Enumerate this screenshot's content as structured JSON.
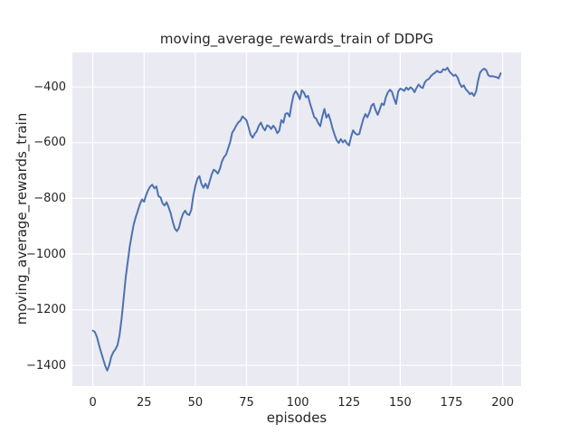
{
  "figure": {
    "title": "moving_average_rewards_train of DDPG",
    "x_axis_label": "episodes",
    "y_axis_label": "moving_average_rewards_train"
  },
  "colors": {
    "figure_background": "#ffffff",
    "axes_background": "#eaeaf2",
    "grid": "#ffffff",
    "line": "#4c72b0",
    "text": "#262626"
  },
  "chart_data": {
    "type": "line",
    "title": "moving_average_rewards_train of DDPG",
    "xlabel": "episodes",
    "ylabel": "moving_average_rewards_train",
    "xlim": [
      -10,
      209
    ],
    "ylim": [
      -1474,
      -276
    ],
    "xticks": [
      0,
      25,
      50,
      75,
      100,
      125,
      150,
      175,
      200
    ],
    "yticks": [
      -400,
      -600,
      -800,
      -1000,
      -1200,
      -1400
    ],
    "grid": true,
    "legend": false,
    "series": [
      {
        "name": "moving average rewards (train)",
        "color": "#4c72b0",
        "x_start": 0,
        "x_step": 1,
        "y": [
          -1275,
          -1280,
          -1298,
          -1326,
          -1352,
          -1377,
          -1400,
          -1418,
          -1398,
          -1368,
          -1352,
          -1342,
          -1328,
          -1292,
          -1232,
          -1162,
          -1085,
          -1028,
          -973,
          -930,
          -892,
          -866,
          -843,
          -820,
          -804,
          -812,
          -788,
          -770,
          -757,
          -751,
          -764,
          -757,
          -792,
          -796,
          -818,
          -826,
          -814,
          -832,
          -854,
          -884,
          -908,
          -918,
          -906,
          -877,
          -856,
          -844,
          -856,
          -860,
          -842,
          -793,
          -756,
          -729,
          -720,
          -748,
          -762,
          -747,
          -764,
          -740,
          -714,
          -697,
          -702,
          -711,
          -694,
          -668,
          -652,
          -643,
          -621,
          -598,
          -564,
          -553,
          -538,
          -527,
          -521,
          -506,
          -512,
          -520,
          -545,
          -571,
          -582,
          -568,
          -559,
          -539,
          -528,
          -545,
          -556,
          -538,
          -541,
          -551,
          -539,
          -548,
          -566,
          -557,
          -519,
          -528,
          -496,
          -494,
          -506,
          -462,
          -427,
          -415,
          -426,
          -444,
          -412,
          -420,
          -437,
          -432,
          -459,
          -483,
          -508,
          -514,
          -530,
          -541,
          -506,
          -479,
          -510,
          -498,
          -521,
          -549,
          -572,
          -592,
          -601,
          -587,
          -599,
          -591,
          -603,
          -610,
          -580,
          -556,
          -566,
          -571,
          -569,
          -542,
          -515,
          -497,
          -509,
          -491,
          -467,
          -460,
          -483,
          -500,
          -481,
          -459,
          -465,
          -437,
          -419,
          -410,
          -418,
          -442,
          -461,
          -417,
          -406,
          -409,
          -414,
          -402,
          -410,
          -401,
          -407,
          -419,
          -403,
          -391,
          -400,
          -404,
          -383,
          -375,
          -371,
          -361,
          -354,
          -349,
          -342,
          -347,
          -347,
          -336,
          -339,
          -331,
          -344,
          -352,
          -360,
          -356,
          -366,
          -387,
          -400,
          -394,
          -408,
          -416,
          -426,
          -421,
          -432,
          -417,
          -378,
          -348,
          -339,
          -334,
          -340,
          -358,
          -362,
          -361,
          -363,
          -365,
          -369,
          -351
        ]
      }
    ]
  }
}
